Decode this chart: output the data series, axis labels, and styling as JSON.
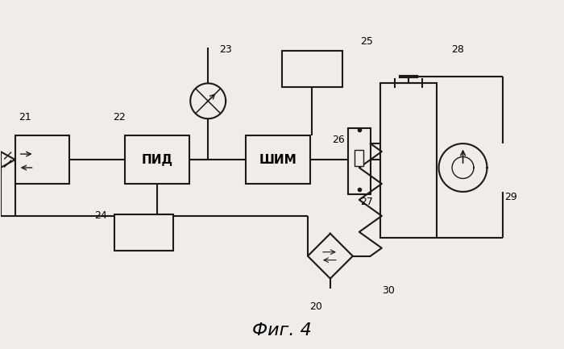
{
  "title": "Фиг. 4",
  "bg": "#f0ede8",
  "lc": "#1a1a1a",
  "lw": 1.5
}
